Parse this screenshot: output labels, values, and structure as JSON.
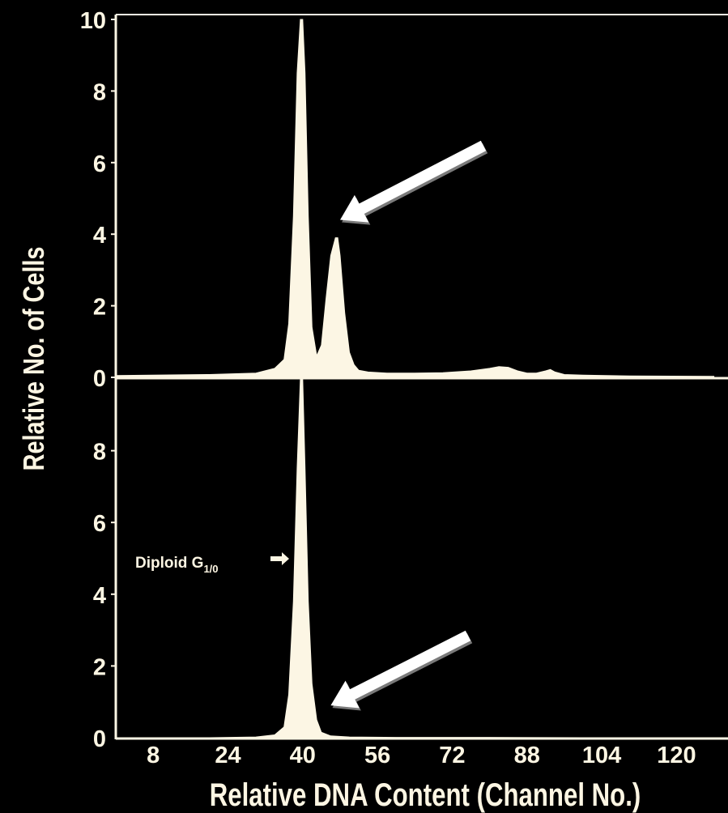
{
  "chart_data": [
    {
      "type": "area",
      "panel": "top",
      "xlabel": "Relative DNA Content (Channel No.)",
      "ylabel": "Relative No. of Cells",
      "xlim": [
        0,
        128
      ],
      "ylim": [
        0,
        10
      ],
      "x_ticks": [
        "8",
        "24",
        "40",
        "56",
        "72",
        "88",
        "104",
        "120"
      ],
      "y_ticks": [
        "0",
        "2",
        "4",
        "6",
        "8",
        "10"
      ],
      "series": [
        {
          "x": [
            0,
            20,
            30,
            34,
            36,
            37,
            38,
            38.8,
            39.5,
            40,
            40.5,
            41.2,
            42,
            43,
            44,
            45,
            46,
            47,
            47.5,
            48,
            49,
            50,
            51,
            52,
            54,
            58,
            64,
            70,
            76,
            80,
            82,
            84,
            86,
            88,
            90,
            92,
            93,
            94,
            96,
            100,
            110,
            128
          ],
          "y": [
            0.05,
            0.08,
            0.12,
            0.25,
            0.5,
            1.5,
            4.5,
            8.5,
            10,
            10,
            8.5,
            4.5,
            1.4,
            0.6,
            0.9,
            2.2,
            3.4,
            3.9,
            3.9,
            3.4,
            1.8,
            0.7,
            0.35,
            0.2,
            0.15,
            0.12,
            0.12,
            0.13,
            0.18,
            0.25,
            0.3,
            0.28,
            0.18,
            0.12,
            0.12,
            0.18,
            0.22,
            0.15,
            0.08,
            0.06,
            0.04,
            0.03
          ]
        }
      ],
      "annotations": [
        {
          "type": "arrow",
          "target": {
            "x": 48,
            "y": 4.4
          }
        }
      ]
    },
    {
      "type": "area",
      "panel": "bottom",
      "xlabel": "Relative DNA Content (Channel No.)",
      "ylabel": "Relative No. of Cells",
      "xlim": [
        0,
        128
      ],
      "ylim": [
        0,
        10
      ],
      "x_ticks": [
        "8",
        "24",
        "40",
        "56",
        "72",
        "88",
        "104",
        "120"
      ],
      "y_ticks": [
        "0",
        "2",
        "4",
        "6",
        "8"
      ],
      "series": [
        {
          "x": [
            0,
            20,
            30,
            34,
            36,
            37,
            38,
            38.8,
            39.5,
            40,
            40.5,
            41.2,
            42,
            43,
            44,
            46,
            50,
            60,
            80,
            100,
            128
          ],
          "y": [
            0,
            0,
            0.02,
            0.08,
            0.3,
            1.2,
            3.8,
            7.5,
            10,
            10,
            7.5,
            3.8,
            1.5,
            0.5,
            0.15,
            0.05,
            0.02,
            0.01,
            0.01,
            0,
            0
          ]
        }
      ],
      "annotations": [
        {
          "type": "label",
          "text": "Diploid G",
          "subscript": "1/0",
          "points_to": {
            "x": 38,
            "y": 5.1
          }
        },
        {
          "type": "arrow",
          "target": {
            "x": 46,
            "y": 0.9
          }
        }
      ]
    }
  ]
}
